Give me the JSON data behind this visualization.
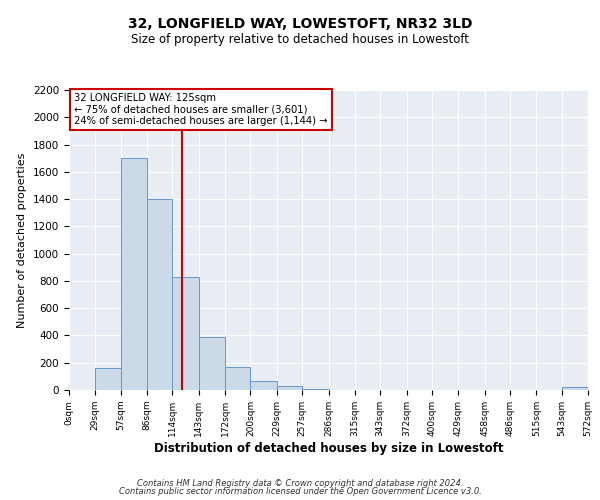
{
  "title": "32, LONGFIELD WAY, LOWESTOFT, NR32 3LD",
  "subtitle": "Size of property relative to detached houses in Lowestoft",
  "xlabel": "Distribution of detached houses by size in Lowestoft",
  "ylabel": "Number of detached properties",
  "bin_edges": [
    0,
    29,
    57,
    86,
    114,
    143,
    172,
    200,
    229,
    257,
    286,
    315,
    343,
    372,
    400,
    429,
    458,
    486,
    515,
    543,
    572
  ],
  "bin_labels": [
    "0sqm",
    "29sqm",
    "57sqm",
    "86sqm",
    "114sqm",
    "143sqm",
    "172sqm",
    "200sqm",
    "229sqm",
    "257sqm",
    "286sqm",
    "315sqm",
    "343sqm",
    "372sqm",
    "400sqm",
    "429sqm",
    "458sqm",
    "486sqm",
    "515sqm",
    "543sqm",
    "572sqm"
  ],
  "counts": [
    0,
    160,
    1700,
    1400,
    830,
    390,
    170,
    65,
    30,
    5,
    0,
    0,
    0,
    0,
    0,
    0,
    0,
    0,
    0,
    20
  ],
  "bar_color": "#ccd9e8",
  "bar_edge_color": "#6699cc",
  "vline_x": 125,
  "vline_color": "#cc0000",
  "annotation_title": "32 LONGFIELD WAY: 125sqm",
  "annotation_line1": "← 75% of detached houses are smaller (3,601)",
  "annotation_line2": "24% of semi-detached houses are larger (1,144) →",
  "annotation_box_color": "#cc0000",
  "ylim": [
    0,
    2200
  ],
  "yticks": [
    0,
    200,
    400,
    600,
    800,
    1000,
    1200,
    1400,
    1600,
    1800,
    2000,
    2200
  ],
  "plot_bg_color": "#e8eef4",
  "footer1": "Contains HM Land Registry data © Crown copyright and database right 2024.",
  "footer2": "Contains public sector information licensed under the Open Government Licence v3.0."
}
